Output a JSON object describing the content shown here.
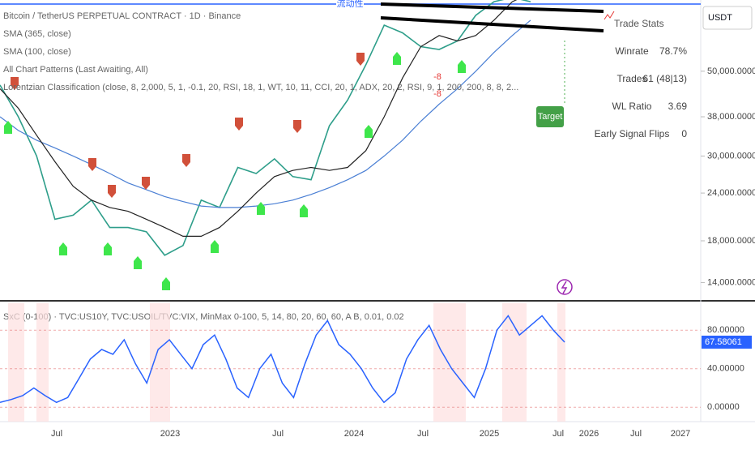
{
  "header": {
    "symbol": "Bitcoin / TetherUS PERPETUAL CONTRACT · 1D · Binance",
    "indicators": [
      "SMA (365, close)",
      "SMA (100, close)",
      "All Chart Patterns (Last Awaiting, All)",
      "Lorentzian Classification (close, 8, 2,000, 5, 1, -0.1, 20, RSI, 18, 1, WT, 10, 11, CCI, 20, 1, ADX, 20, 2, RSI, 9, 1, 200, 200, 8, 8, 2..."
    ]
  },
  "price_axis": {
    "currency": "USDT",
    "log": true,
    "ylim": [
      12600,
      76800
    ],
    "ticks": [
      {
        "value": 50000,
        "label": "50,000.00000"
      },
      {
        "value": 38000,
        "label": "38,000.00000"
      },
      {
        "value": 30000,
        "label": "30,000.00000"
      },
      {
        "value": 24000,
        "label": "24,000.00000"
      },
      {
        "value": 18000,
        "label": "18,000.00000"
      },
      {
        "value": 14000,
        "label": "14,000.00000"
      }
    ]
  },
  "price_chart": {
    "series": [
      {
        "name": "close",
        "color": "#2e9e8a",
        "values": [
          46000,
          38000,
          30000,
          20500,
          21000,
          23000,
          19500,
          19500,
          19000,
          16500,
          17500,
          23000,
          22000,
          28000,
          27000,
          29500,
          26500,
          26000,
          36000,
          42000,
          52000,
          66000,
          63000,
          58000,
          57000,
          60000,
          70000,
          76000,
          78000,
          76000
        ]
      },
      {
        "name": "SMA 365",
        "color": "#4a7fd4",
        "values": [
          38000,
          35000,
          33000,
          31500,
          30000,
          28500,
          27000,
          25500,
          24500,
          23500,
          22800,
          22200,
          22000,
          22000,
          22200,
          22500,
          23000,
          23800,
          24800,
          26000,
          27500,
          30000,
          33000,
          37000,
          41000,
          45000,
          50000,
          56000,
          62000,
          68000
        ]
      },
      {
        "name": "SMA 100",
        "color": "#222222",
        "values": [
          45000,
          40000,
          34000,
          29000,
          25000,
          23000,
          22000,
          21500,
          20500,
          19500,
          18500,
          18500,
          19500,
          21500,
          24000,
          26500,
          27500,
          28000,
          27500,
          28000,
          31000,
          38000,
          48000,
          58000,
          62000,
          60000,
          62000,
          68000,
          76000,
          80000
        ]
      }
    ]
  },
  "annotations": {
    "liquidity": "流动性",
    "target": "Target",
    "pattern_labels": [
      "-8",
      "-8"
    ]
  },
  "trade_stats": {
    "title": "Trade Stats",
    "rows": [
      [
        "Winrate",
        "78.7%"
      ],
      [
        "Trades",
        "61 (48|13)"
      ],
      [
        "WL Ratio",
        "3.69"
      ],
      [
        "Early Signal Flips",
        "0"
      ]
    ]
  },
  "oscillator": {
    "title": "SxC (0-100) · TVC:US10Y, TVC:USOIL/TVC:VIX, MinMax 0-100, 5, 14, 80, 20, 60, 60, A B, 0.01, 0.02",
    "ylim": [
      -15,
      108
    ],
    "ticks": [
      {
        "value": 80,
        "label": "80.00000"
      },
      {
        "value": 40,
        "label": "40.00000"
      },
      {
        "value": 0,
        "label": "0.00000"
      }
    ],
    "current": {
      "value": 67.58061,
      "label": "67.58061"
    },
    "values": [
      5,
      8,
      12,
      20,
      12,
      5,
      10,
      30,
      50,
      60,
      55,
      70,
      45,
      25,
      60,
      70,
      55,
      40,
      65,
      75,
      50,
      20,
      10,
      40,
      55,
      25,
      10,
      45,
      75,
      90,
      65,
      55,
      40,
      20,
      5,
      15,
      50,
      70,
      85,
      60,
      40,
      25,
      10,
      40,
      80,
      95,
      75,
      85,
      95,
      80,
      67.58061
    ]
  },
  "time_axis": {
    "labels": [
      "Jul",
      "2023",
      "Jul",
      "2024",
      "Jul",
      "2025",
      "Jul",
      "2026",
      "Jul",
      "2027"
    ]
  }
}
